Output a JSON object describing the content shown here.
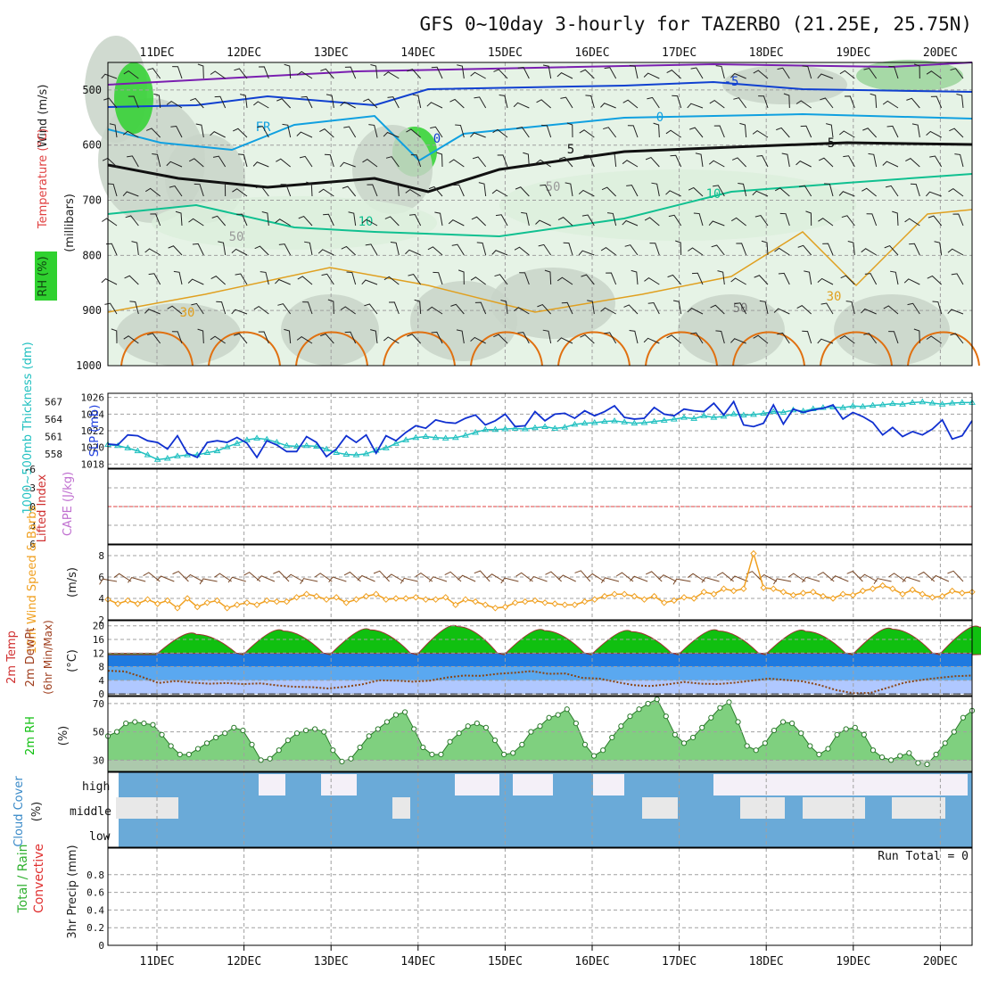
{
  "title": "GFS 0~10day 3-hourly for TAZERBO (21.25E, 25.75N)",
  "colors": {
    "rh_green": "#2fd12f",
    "rh_light": "#e6f3e6",
    "rh_gray": "#c8d4c8",
    "temp_purple": "#7a1fb0",
    "temp_blue": "#1040d0",
    "temp_cyan": "#10a0e0",
    "temp_teal": "#10c090",
    "temp_orange": "#e0a020",
    "temp_deep_orange": "#e07010",
    "slp_blue": "#1030d0",
    "thickness_cyan": "#20c0c0",
    "lifted_red": "#e04040",
    "wind_orange": "#f0a020",
    "temp2m_green": "#10c010",
    "dew_brown": "#8b4513",
    "cloud_blue": "#6aaad8",
    "cloud_light": "#f4f0f8",
    "precip_red": "#e03030",
    "grid": "#a0a0a0"
  },
  "chart_data": [
    {
      "panel": "upper-air",
      "type": "contour",
      "ylabel_parts": [
        "RH (%)",
        "Temperature (°C)",
        "Wind (m/s)"
      ],
      "ylabel_units": "(millibars)",
      "y_ticks": [
        "500",
        "600",
        "700",
        "800",
        "900",
        "1000"
      ],
      "ylim": [
        1000,
        450
      ],
      "contour_labels": [
        "-10",
        "-5",
        "0",
        "FR",
        "5",
        "10",
        "30",
        "50"
      ],
      "x_ticks": [
        "11DEC",
        "12DEC",
        "13DEC",
        "14DEC",
        "15DEC",
        "16DEC",
        "17DEC",
        "18DEC",
        "19DEC",
        "20DEC"
      ]
    },
    {
      "panel": "slp-thickness",
      "type": "line",
      "ylabel_left": "1000~500mb Thickness (dm)",
      "ylabel_right": "SLP (mb)",
      "left_ticks": [
        "567",
        "564",
        "561",
        "558"
      ],
      "right_ticks": [
        "1026",
        "1024",
        "1022",
        "1020",
        "1018"
      ],
      "slp_ylim": [
        1017.5,
        1026.5
      ],
      "thick_ylim": [
        555.5,
        568.5
      ],
      "slp": [
        1020.4,
        1020.3,
        1021.5,
        1021.4,
        1020.8,
        1020.6,
        1019.8,
        1021.4,
        1019.3,
        1018.8,
        1020.6,
        1020.8,
        1020.6,
        1021.2,
        1020.5,
        1018.8,
        1020.8,
        1020.3,
        1019.5,
        1019.5,
        1021.3,
        1020.6,
        1018.9,
        1019.8,
        1021.4,
        1020.6,
        1021.5,
        1019.3,
        1021.4,
        1020.8,
        1021.8,
        1022.6,
        1022.3,
        1023.3,
        1023.0,
        1022.9,
        1023.5,
        1023.9,
        1022.7,
        1023.2,
        1024.0,
        1022.5,
        1022.6,
        1024.3,
        1023.2,
        1024.0,
        1024.1,
        1023.5,
        1024.4,
        1023.8,
        1024.3,
        1025.0,
        1023.6,
        1023.4,
        1023.5,
        1024.8,
        1024.0,
        1023.8,
        1024.6,
        1024.4,
        1024.3,
        1025.3,
        1023.9,
        1025.5,
        1022.7,
        1022.5,
        1022.9,
        1025.1,
        1022.8,
        1024.6,
        1024.2,
        1024.5,
        1024.7,
        1025.1,
        1023.4,
        1024.2,
        1023.7,
        1023.0,
        1021.5,
        1022.4,
        1021.3,
        1021.9,
        1021.5,
        1022.2,
        1023.3,
        1021.0,
        1021.4,
        1023.2
      ],
      "thickness": [
        559.6,
        559.4,
        559.0,
        558.5,
        557.8,
        557.0,
        557.2,
        557.6,
        557.8,
        557.8,
        558.2,
        558.5,
        559.2,
        559.8,
        560.4,
        560.7,
        560.5,
        560.0,
        559.4,
        559.3,
        559.4,
        559.3,
        558.8,
        558.2,
        557.9,
        557.8,
        558.0,
        558.6,
        559.0,
        559.8,
        560.4,
        560.8,
        561.0,
        560.8,
        560.7,
        560.8,
        561.2,
        561.7,
        562.2,
        562.2,
        562.3,
        562.4,
        562.3,
        562.5,
        562.7,
        562.4,
        562.6,
        563.1,
        563.3,
        563.4,
        563.6,
        563.7,
        563.5,
        563.3,
        563.4,
        563.6,
        563.8,
        564.0,
        564.3,
        564.1,
        564.6,
        564.3,
        564.5,
        564.9,
        564.7,
        564.8,
        565.0,
        565.3,
        565.2,
        565.6,
        565.4,
        565.8,
        566.0,
        566.1,
        566.0,
        566.3,
        566.2,
        566.4,
        566.5,
        566.7,
        566.6,
        566.9,
        567.0,
        566.8,
        566.6,
        566.8,
        566.9,
        566.9
      ]
    },
    {
      "panel": "cape-lifted",
      "type": "line",
      "ylabel_left": "Lifted Index",
      "ylabel_right": "CAPE (J/kg)",
      "ticks": [
        "-6",
        "-3",
        "0",
        "3",
        "6"
      ],
      "ylim": [
        -6,
        6
      ],
      "lifted_index_line": 0
    },
    {
      "panel": "wind10m",
      "type": "line",
      "ylabel": "10m Wind Speed & Barbs",
      "yunits": "(m/s)",
      "ticks": [
        "8",
        "6",
        "4",
        "2"
      ],
      "ylim": [
        2,
        9
      ],
      "speed": [
        3.9,
        3.5,
        3.8,
        3.5,
        3.9,
        3.5,
        3.8,
        3.1,
        4.0,
        3.2,
        3.6,
        3.8,
        3.1,
        3.4,
        3.6,
        3.4,
        3.8,
        3.7,
        3.7,
        4.1,
        4.4,
        4.2,
        3.9,
        4.1,
        3.6,
        3.9,
        4.2,
        4.4,
        3.9,
        4.0,
        4.0,
        4.1,
        3.9,
        3.9,
        4.1,
        3.4,
        3.9,
        3.7,
        3.4,
        3.1,
        3.2,
        3.6,
        3.7,
        3.8,
        3.6,
        3.5,
        3.4,
        3.4,
        3.7,
        3.9,
        4.2,
        4.4,
        4.4,
        4.2,
        3.9,
        4.2,
        3.6,
        3.8,
        4.1,
        4.0,
        4.6,
        4.4,
        4.9,
        4.7,
        4.9,
        8.2,
        5.0,
        4.9,
        4.6,
        4.3,
        4.5,
        4.6,
        4.2,
        4.0,
        4.4,
        4.3,
        4.7,
        4.9,
        5.2,
        4.9,
        4.4,
        4.8,
        4.4,
        4.1,
        4.2,
        4.7,
        4.5,
        4.6
      ],
      "barbs_label": "Barbs"
    },
    {
      "panel": "temp2m",
      "type": "area",
      "ylabel_parts": [
        "2m Temp",
        "2m DewPt",
        "(6hr Min/Max)"
      ],
      "yunits": "(°C)",
      "ticks": [
        "20",
        "16",
        "12",
        "8",
        "4",
        "0"
      ],
      "ylim": [
        -0.5,
        21.5
      ],
      "temp_min_daily": 11.5,
      "temp_max_daily": [
        17.5,
        18.5,
        18.8,
        19.8,
        18.6,
        18.3,
        18.5,
        18.4,
        19.0,
        19.6
      ],
      "dewpoint": [
        6.8,
        6.6,
        5.0,
        3.2,
        3.8,
        3.3,
        3.0,
        3.2,
        2.9,
        3.1,
        2.5,
        2.1,
        2.0,
        1.6,
        2.1,
        2.8,
        4.0,
        3.9,
        3.6,
        3.9,
        4.8,
        5.4,
        5.3,
        5.9,
        6.2,
        6.7,
        5.9,
        6.0,
        4.7,
        4.5,
        3.5,
        2.6,
        2.3,
        2.8,
        3.5,
        3.0,
        2.9,
        3.3,
        3.9,
        4.5,
        4.1,
        3.7,
        2.6,
        1.1,
        0.2,
        0.3,
        1.8,
        3.3,
        4.1,
        4.7,
        5.2,
        5.4
      ]
    },
    {
      "panel": "rh2m",
      "type": "area",
      "ylabel": "2m RH",
      "yunits": "(%)",
      "ticks": [
        "70",
        "50",
        "30"
      ],
      "ylim": [
        22,
        75
      ],
      "rh": [
        47,
        50,
        56,
        57,
        56,
        55,
        48,
        40,
        34,
        34,
        38,
        42,
        46,
        49,
        53,
        51,
        41,
        30,
        31,
        37,
        44,
        49,
        51,
        52,
        50,
        37,
        29,
        31,
        39,
        47,
        52,
        57,
        62,
        64,
        52,
        39,
        34,
        34,
        43,
        49,
        54,
        56,
        53,
        44,
        34,
        35,
        41,
        50,
        54,
        60,
        62,
        66,
        56,
        41,
        33,
        37,
        46,
        54,
        61,
        66,
        70,
        73,
        61,
        48,
        42,
        46,
        53,
        60,
        67,
        71,
        57,
        40,
        37,
        42,
        51,
        57,
        56,
        49,
        40,
        34,
        38,
        48,
        52,
        53,
        48,
        37,
        32,
        30,
        33,
        35,
        28,
        27,
        34,
        42,
        50,
        60,
        65
      ]
    },
    {
      "panel": "cloud",
      "type": "bar",
      "ylabel": "Cloud Cover",
      "yunits": "(%)",
      "layers": [
        "high",
        "middle",
        "low"
      ]
    },
    {
      "panel": "precip",
      "type": "bar",
      "ylabel_parts": [
        "Total / Rain",
        "Convective"
      ],
      "ylabel": "3hr Precip (mm)",
      "ticks": [
        "0.8",
        "0.6",
        "0.4",
        "0.2",
        "0"
      ],
      "ylim": [
        0,
        1.0
      ],
      "run_total": "Run Total = 0",
      "values": []
    }
  ]
}
